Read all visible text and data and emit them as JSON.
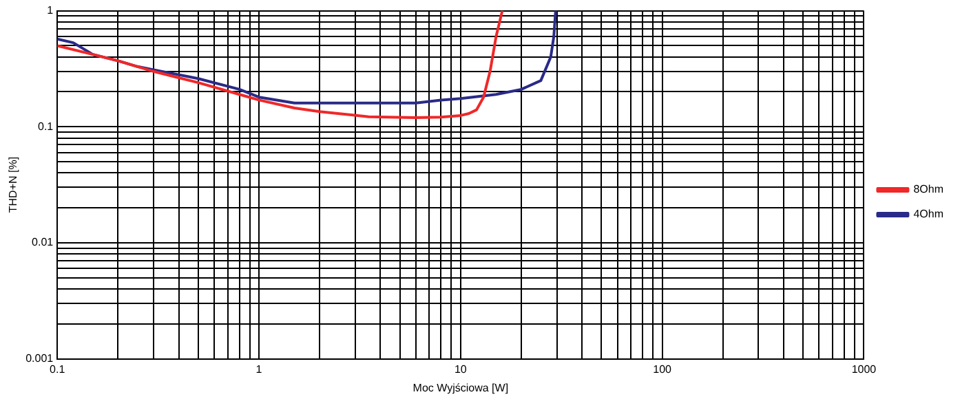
{
  "chart_data": {
    "type": "line",
    "xlabel": "Moc Wyjściowa [W]",
    "ylabel": "THD+N [%]",
    "log": "xy",
    "grid": true,
    "legend": "right",
    "marker": "none",
    "line_style": "solid",
    "xlim": [
      0.1,
      1000
    ],
    "ylim": [
      0.001,
      1
    ],
    "xticks": [
      0.1,
      {
        "value": 0.2,
        "label": null
      },
      {
        "value": 0.3,
        "label": null
      },
      {
        "value": 0.4,
        "label": null
      },
      {
        "value": 0.5,
        "label": null
      },
      {
        "value": 0.6,
        "label": null
      },
      {
        "value": 0.7,
        "label": null
      },
      {
        "value": 0.8,
        "label": null
      },
      {
        "value": 0.9,
        "label": null
      },
      1,
      {
        "value": 2,
        "label": null
      },
      {
        "value": 3,
        "label": null
      },
      {
        "value": 4,
        "label": null
      },
      {
        "value": 5,
        "label": null
      },
      {
        "value": 6,
        "label": null
      },
      {
        "value": 7,
        "label": null
      },
      {
        "value": 8,
        "label": null
      },
      {
        "value": 9,
        "label": null
      },
      10,
      {
        "value": 20,
        "label": null
      },
      {
        "value": 30,
        "label": null
      },
      {
        "value": 40,
        "label": null
      },
      {
        "value": 50,
        "label": null
      },
      {
        "value": 60,
        "label": null
      },
      {
        "value": 70,
        "label": null
      },
      {
        "value": 80,
        "label": null
      },
      {
        "value": 90,
        "label": null
      },
      100,
      {
        "value": 200,
        "label": null
      },
      {
        "value": 300,
        "label": null
      },
      {
        "value": 400,
        "label": null
      },
      {
        "value": 500,
        "label": null
      },
      {
        "value": 600,
        "label": null
      },
      {
        "value": 700,
        "label": null
      },
      {
        "value": 800,
        "label": null
      },
      {
        "value": 900,
        "label": null
      },
      1000
    ],
    "yticks": [
      0.001,
      {
        "value": 0.002,
        "label": null
      },
      {
        "value": 0.003,
        "label": null
      },
      {
        "value": 0.004,
        "label": null
      },
      {
        "value": 0.005,
        "label": null
      },
      {
        "value": 0.006,
        "label": null
      },
      {
        "value": 0.007,
        "label": null
      },
      {
        "value": 0.008,
        "label": null
      },
      {
        "value": 0.009,
        "label": null
      },
      0.01,
      {
        "value": 0.02,
        "label": null
      },
      {
        "value": 0.03,
        "label": null
      },
      {
        "value": 0.04,
        "label": null
      },
      {
        "value": 0.05,
        "label": null
      },
      {
        "value": 0.06,
        "label": null
      },
      {
        "value": 0.07,
        "label": null
      },
      {
        "value": 0.08,
        "label": null
      },
      {
        "value": 0.09,
        "label": null
      },
      0.1,
      {
        "value": 0.2,
        "label": null
      },
      {
        "value": 0.3,
        "label": null
      },
      {
        "value": 0.4,
        "label": null
      },
      {
        "value": 0.5,
        "label": null
      },
      {
        "value": 0.6,
        "label": null
      },
      {
        "value": 0.7,
        "label": null
      },
      {
        "value": 0.8,
        "label": null
      },
      {
        "value": 0.9,
        "label": null
      },
      1
    ],
    "series": [
      {
        "name": "8Ohm",
        "color": "#f02828",
        "x": [
          0.1,
          0.15,
          0.2,
          0.3,
          0.5,
          0.8,
          1,
          1.5,
          2,
          3.5,
          6,
          8,
          10,
          11,
          12,
          13,
          14,
          15,
          16.1
        ],
        "values": [
          0.5,
          0.42,
          0.37,
          0.3,
          0.24,
          0.19,
          0.17,
          0.145,
          0.135,
          0.122,
          0.12,
          0.121,
          0.125,
          0.13,
          0.14,
          0.18,
          0.3,
          0.6,
          1
        ]
      },
      {
        "name": "4Ohm",
        "color": "#2a2a88",
        "x": [
          0.1,
          0.12,
          0.15,
          0.2,
          0.25,
          0.3,
          0.5,
          0.8,
          1,
          1.5,
          2,
          3,
          4,
          6,
          8,
          10,
          15,
          20,
          25,
          28,
          29,
          29.6
        ],
        "values": [
          0.57,
          0.53,
          0.42,
          0.37,
          0.33,
          0.31,
          0.26,
          0.21,
          0.18,
          0.16,
          0.16,
          0.16,
          0.16,
          0.16,
          0.17,
          0.175,
          0.19,
          0.21,
          0.25,
          0.4,
          0.6,
          1
        ]
      }
    ]
  }
}
